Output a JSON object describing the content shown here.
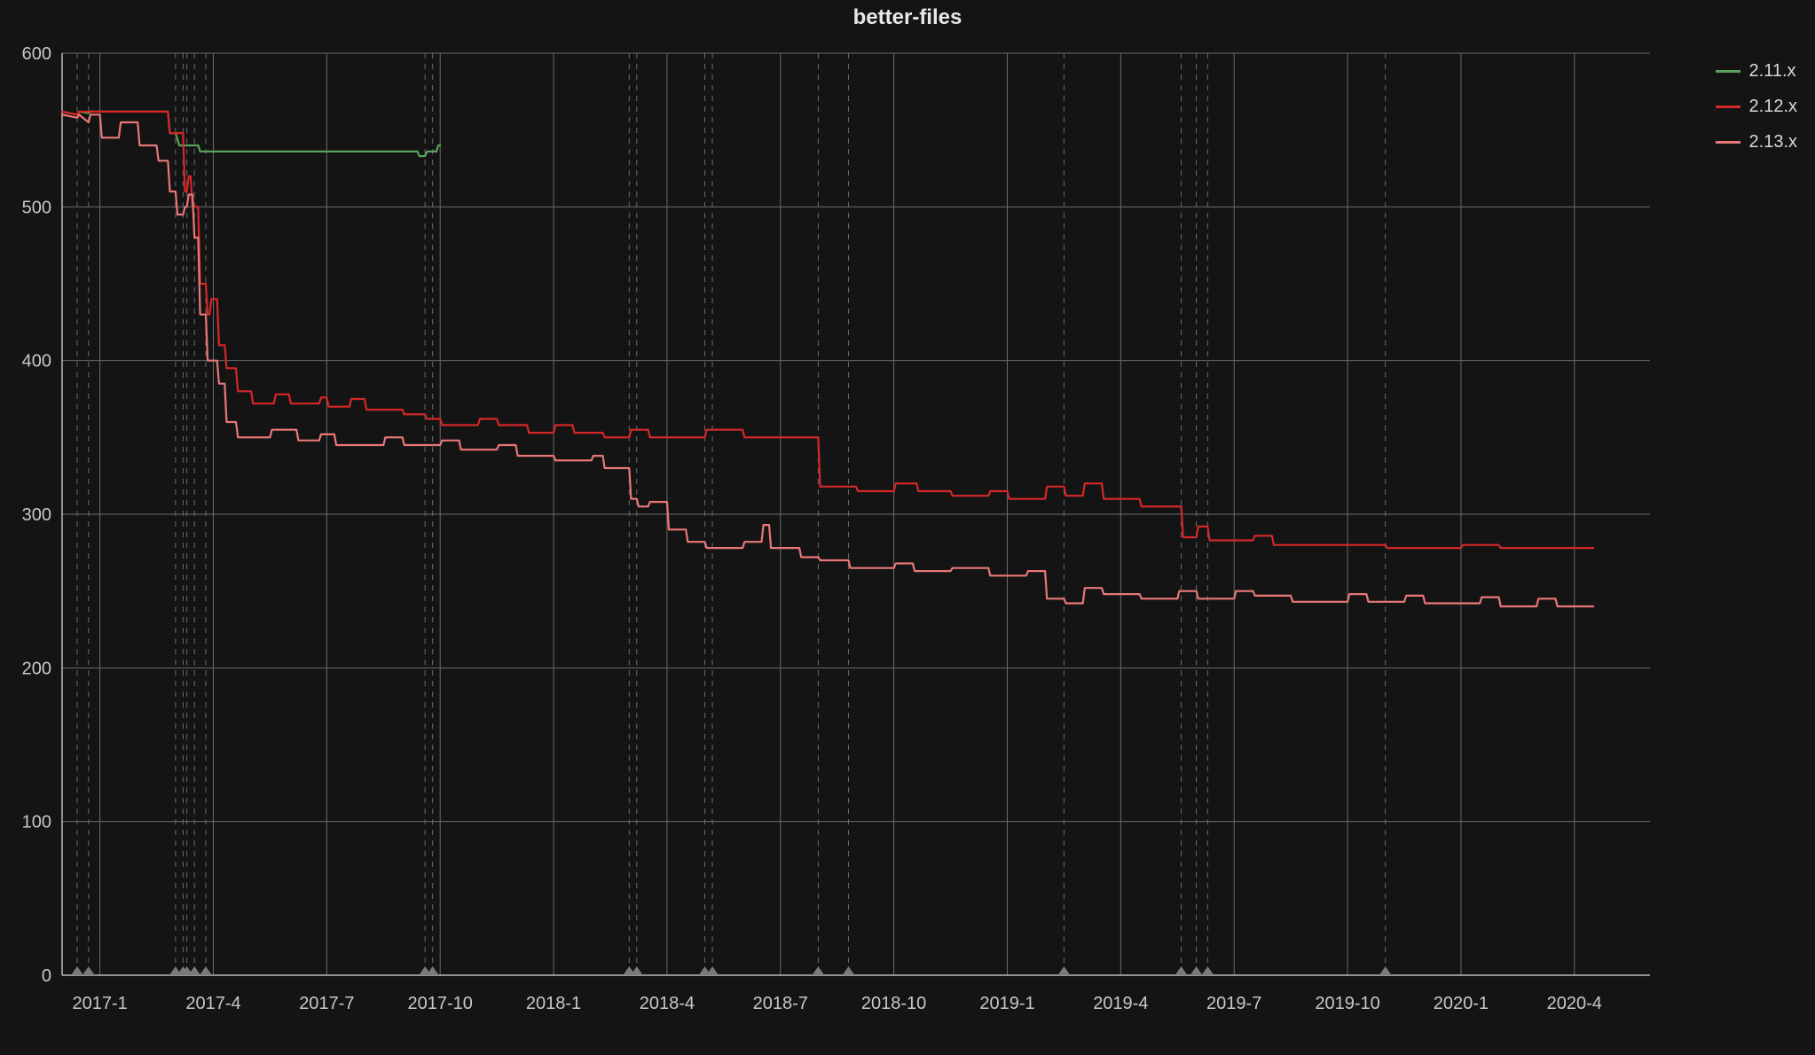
{
  "title": "better-files",
  "background_color": "#141414",
  "text_color": "#d8d8d8",
  "grid_color": "#6b6b6b",
  "axis_color": "#bdbdbd",
  "chart": {
    "type": "line-step",
    "ylim": [
      0,
      600
    ],
    "ytick_step": 100,
    "yticks": [
      0,
      100,
      200,
      300,
      400,
      500,
      600
    ],
    "xlim_months": [
      0,
      42
    ],
    "xtick_months": [
      1,
      4,
      7,
      10,
      13,
      16,
      19,
      22,
      25,
      28,
      31,
      34,
      37,
      40
    ],
    "xtick_labels": [
      "2017-1",
      "2017-4",
      "2017-7",
      "2017-10",
      "2018-1",
      "2018-4",
      "2018-7",
      "2018-10",
      "2019-1",
      "2019-4",
      "2019-7",
      "2019-10",
      "2020-1",
      "2020-4"
    ],
    "dashed_verticals": [
      0.4,
      0.7,
      3.0,
      3.2,
      3.3,
      3.5,
      3.8,
      9.6,
      9.8,
      15.0,
      15.2,
      17.0,
      17.2,
      20.0,
      20.8,
      26.5,
      29.6,
      30.0,
      30.3,
      35.0
    ],
    "marker_months": [
      0.4,
      0.7,
      3.0,
      3.2,
      3.3,
      3.5,
      3.8,
      9.6,
      9.8,
      15.0,
      15.2,
      17.0,
      17.2,
      20.0,
      20.8,
      26.5,
      29.6,
      30.0,
      30.3,
      35.0
    ],
    "title_fontsize": 24,
    "label_fontsize": 20,
    "line_width": 2.2
  },
  "legend": {
    "items": [
      {
        "label": "2.11.x",
        "color": "#5aa25a"
      },
      {
        "label": "2.12.x",
        "color": "#d62728"
      },
      {
        "label": "2.13.x",
        "color": "#e97778"
      }
    ]
  },
  "series": {
    "s211": {
      "label": "2.11.x",
      "color": "#5aa25a",
      "points": [
        [
          0.0,
          562
        ],
        [
          0.4,
          560
        ],
        [
          0.45,
          562
        ],
        [
          0.7,
          561
        ],
        [
          0.75,
          562
        ],
        [
          2.8,
          562
        ],
        [
          2.85,
          548
        ],
        [
          3.0,
          548
        ],
        [
          3.1,
          540
        ],
        [
          3.6,
          540
        ],
        [
          3.65,
          536
        ],
        [
          9.4,
          536
        ],
        [
          9.45,
          533
        ],
        [
          9.6,
          533
        ],
        [
          9.65,
          536
        ],
        [
          9.9,
          536
        ],
        [
          9.95,
          540
        ],
        [
          10.0,
          540
        ]
      ]
    },
    "s212": {
      "label": "2.12.x",
      "color": "#d62728",
      "points": [
        [
          0.0,
          562
        ],
        [
          0.4,
          560
        ],
        [
          0.45,
          562
        ],
        [
          2.8,
          562
        ],
        [
          2.85,
          548
        ],
        [
          3.2,
          548
        ],
        [
          3.25,
          510
        ],
        [
          3.3,
          510
        ],
        [
          3.35,
          520
        ],
        [
          3.4,
          520
        ],
        [
          3.45,
          500
        ],
        [
          3.6,
          500
        ],
        [
          3.65,
          450
        ],
        [
          3.8,
          450
        ],
        [
          3.85,
          430
        ],
        [
          3.9,
          430
        ],
        [
          3.95,
          440
        ],
        [
          4.1,
          440
        ],
        [
          4.15,
          410
        ],
        [
          4.3,
          410
        ],
        [
          4.35,
          395
        ],
        [
          4.6,
          395
        ],
        [
          4.65,
          380
        ],
        [
          5.0,
          380
        ],
        [
          5.05,
          372
        ],
        [
          5.6,
          372
        ],
        [
          5.65,
          378
        ],
        [
          6.0,
          378
        ],
        [
          6.05,
          372
        ],
        [
          6.8,
          372
        ],
        [
          6.85,
          376
        ],
        [
          7.0,
          376
        ],
        [
          7.05,
          370
        ],
        [
          7.6,
          370
        ],
        [
          7.65,
          375
        ],
        [
          8.0,
          375
        ],
        [
          8.05,
          368
        ],
        [
          9.0,
          368
        ],
        [
          9.05,
          365
        ],
        [
          9.6,
          365
        ],
        [
          9.65,
          362
        ],
        [
          10.0,
          362
        ],
        [
          10.05,
          358
        ],
        [
          11.0,
          358
        ],
        [
          11.05,
          362
        ],
        [
          11.5,
          362
        ],
        [
          11.55,
          358
        ],
        [
          12.3,
          358
        ],
        [
          12.35,
          353
        ],
        [
          13.0,
          353
        ],
        [
          13.05,
          358
        ],
        [
          13.5,
          358
        ],
        [
          13.55,
          353
        ],
        [
          14.3,
          353
        ],
        [
          14.35,
          350
        ],
        [
          15.0,
          350
        ],
        [
          15.05,
          355
        ],
        [
          15.5,
          355
        ],
        [
          15.55,
          350
        ],
        [
          17.0,
          350
        ],
        [
          17.05,
          355
        ],
        [
          18.0,
          355
        ],
        [
          18.05,
          350
        ],
        [
          20.0,
          350
        ],
        [
          20.05,
          318
        ],
        [
          21.0,
          318
        ],
        [
          21.05,
          315
        ],
        [
          22.0,
          315
        ],
        [
          22.05,
          320
        ],
        [
          22.6,
          320
        ],
        [
          22.65,
          315
        ],
        [
          23.5,
          315
        ],
        [
          23.55,
          312
        ],
        [
          24.5,
          312
        ],
        [
          24.55,
          315
        ],
        [
          25.0,
          315
        ],
        [
          25.05,
          310
        ],
        [
          26.0,
          310
        ],
        [
          26.05,
          318
        ],
        [
          26.5,
          318
        ],
        [
          26.55,
          312
        ],
        [
          27.0,
          312
        ],
        [
          27.05,
          320
        ],
        [
          27.5,
          320
        ],
        [
          27.55,
          310
        ],
        [
          28.5,
          310
        ],
        [
          28.55,
          305
        ],
        [
          29.6,
          305
        ],
        [
          29.65,
          285
        ],
        [
          30.0,
          285
        ],
        [
          30.05,
          292
        ],
        [
          30.3,
          292
        ],
        [
          30.35,
          283
        ],
        [
          31.5,
          283
        ],
        [
          31.55,
          286
        ],
        [
          32.0,
          286
        ],
        [
          32.05,
          280
        ],
        [
          35.0,
          280
        ],
        [
          35.05,
          278
        ],
        [
          37.0,
          278
        ],
        [
          37.05,
          280
        ],
        [
          38.0,
          280
        ],
        [
          38.05,
          278
        ],
        [
          40.5,
          278
        ]
      ]
    },
    "s213": {
      "label": "2.13.x",
      "color": "#e97778",
      "points": [
        [
          0.0,
          560
        ],
        [
          0.4,
          558
        ],
        [
          0.45,
          560
        ],
        [
          0.7,
          555
        ],
        [
          0.75,
          560
        ],
        [
          1.0,
          560
        ],
        [
          1.05,
          545
        ],
        [
          1.5,
          545
        ],
        [
          1.55,
          555
        ],
        [
          2.0,
          555
        ],
        [
          2.05,
          540
        ],
        [
          2.5,
          540
        ],
        [
          2.55,
          530
        ],
        [
          2.8,
          530
        ],
        [
          2.85,
          510
        ],
        [
          3.0,
          510
        ],
        [
          3.05,
          495
        ],
        [
          3.2,
          495
        ],
        [
          3.25,
          500
        ],
        [
          3.3,
          500
        ],
        [
          3.35,
          508
        ],
        [
          3.45,
          508
        ],
        [
          3.5,
          480
        ],
        [
          3.6,
          480
        ],
        [
          3.65,
          430
        ],
        [
          3.8,
          430
        ],
        [
          3.85,
          400
        ],
        [
          4.1,
          400
        ],
        [
          4.15,
          385
        ],
        [
          4.3,
          385
        ],
        [
          4.35,
          360
        ],
        [
          4.6,
          360
        ],
        [
          4.65,
          350
        ],
        [
          5.5,
          350
        ],
        [
          5.55,
          355
        ],
        [
          6.2,
          355
        ],
        [
          6.25,
          348
        ],
        [
          6.8,
          348
        ],
        [
          6.85,
          352
        ],
        [
          7.2,
          352
        ],
        [
          7.25,
          345
        ],
        [
          8.5,
          345
        ],
        [
          8.55,
          350
        ],
        [
          9.0,
          350
        ],
        [
          9.05,
          345
        ],
        [
          10.0,
          345
        ],
        [
          10.05,
          348
        ],
        [
          10.5,
          348
        ],
        [
          10.55,
          342
        ],
        [
          11.5,
          342
        ],
        [
          11.55,
          345
        ],
        [
          12.0,
          345
        ],
        [
          12.05,
          338
        ],
        [
          13.0,
          338
        ],
        [
          13.05,
          335
        ],
        [
          14.0,
          335
        ],
        [
          14.05,
          338
        ],
        [
          14.3,
          338
        ],
        [
          14.35,
          330
        ],
        [
          15.0,
          330
        ],
        [
          15.05,
          310
        ],
        [
          15.2,
          310
        ],
        [
          15.25,
          305
        ],
        [
          15.5,
          305
        ],
        [
          15.55,
          308
        ],
        [
          16.0,
          308
        ],
        [
          16.05,
          290
        ],
        [
          16.5,
          290
        ],
        [
          16.55,
          282
        ],
        [
          17.0,
          282
        ],
        [
          17.05,
          278
        ],
        [
          18.0,
          278
        ],
        [
          18.05,
          282
        ],
        [
          18.5,
          282
        ],
        [
          18.55,
          293
        ],
        [
          18.7,
          293
        ],
        [
          18.75,
          278
        ],
        [
          19.5,
          278
        ],
        [
          19.55,
          272
        ],
        [
          20.0,
          272
        ],
        [
          20.05,
          270
        ],
        [
          20.8,
          270
        ],
        [
          20.85,
          265
        ],
        [
          22.0,
          265
        ],
        [
          22.05,
          268
        ],
        [
          22.5,
          268
        ],
        [
          22.55,
          263
        ],
        [
          23.5,
          263
        ],
        [
          23.55,
          265
        ],
        [
          24.5,
          265
        ],
        [
          24.55,
          260
        ],
        [
          25.5,
          260
        ],
        [
          25.55,
          263
        ],
        [
          26.0,
          263
        ],
        [
          26.05,
          245
        ],
        [
          26.5,
          245
        ],
        [
          26.55,
          242
        ],
        [
          27.0,
          242
        ],
        [
          27.05,
          252
        ],
        [
          27.5,
          252
        ],
        [
          27.55,
          248
        ],
        [
          28.5,
          248
        ],
        [
          28.55,
          245
        ],
        [
          29.5,
          245
        ],
        [
          29.55,
          250
        ],
        [
          30.0,
          250
        ],
        [
          30.05,
          245
        ],
        [
          31.0,
          245
        ],
        [
          31.05,
          250
        ],
        [
          31.5,
          250
        ],
        [
          31.55,
          247
        ],
        [
          32.5,
          247
        ],
        [
          32.55,
          243
        ],
        [
          34.0,
          243
        ],
        [
          34.05,
          248
        ],
        [
          34.5,
          248
        ],
        [
          34.55,
          243
        ],
        [
          35.5,
          243
        ],
        [
          35.55,
          247
        ],
        [
          36.0,
          247
        ],
        [
          36.05,
          242
        ],
        [
          37.5,
          242
        ],
        [
          37.55,
          246
        ],
        [
          38.0,
          246
        ],
        [
          38.05,
          240
        ],
        [
          39.0,
          240
        ],
        [
          39.05,
          245
        ],
        [
          39.5,
          245
        ],
        [
          39.55,
          240
        ],
        [
          40.5,
          240
        ]
      ]
    }
  }
}
